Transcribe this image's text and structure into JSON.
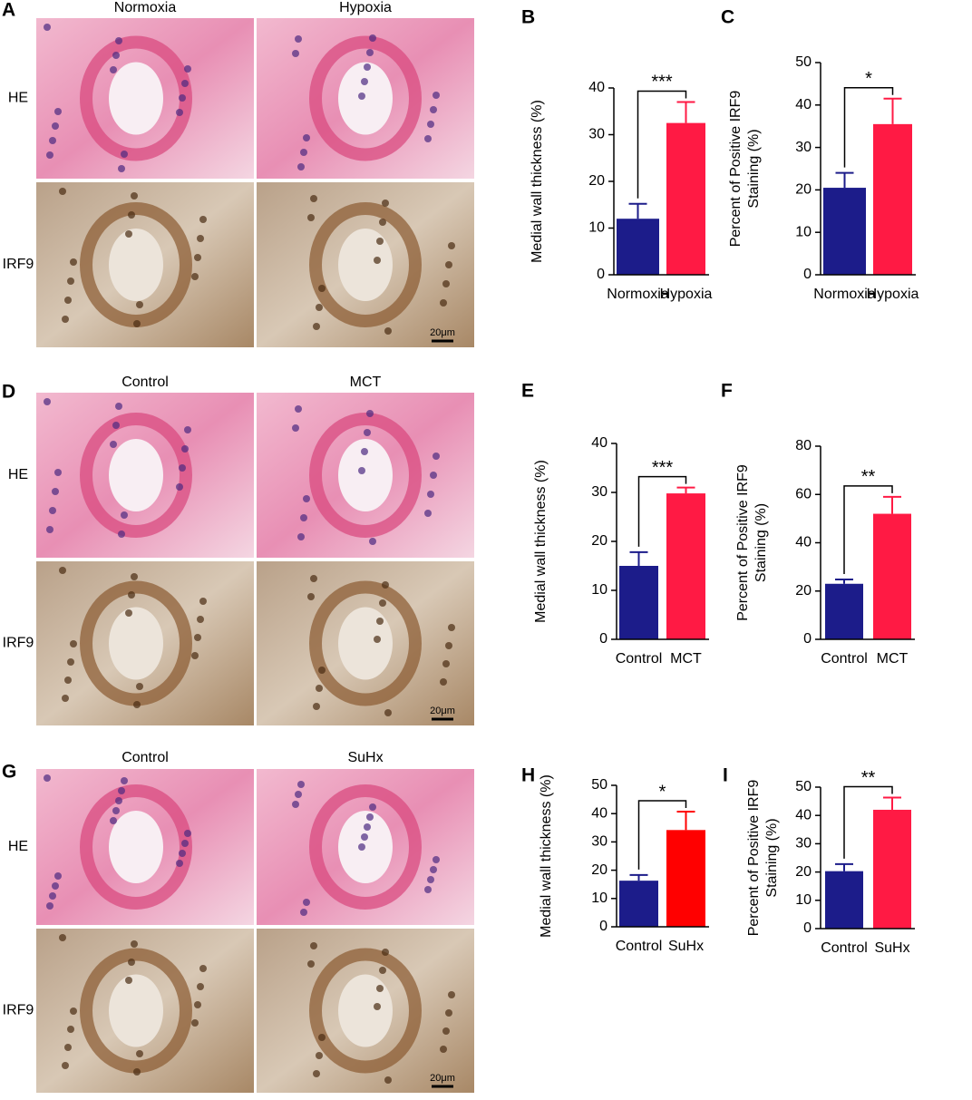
{
  "image_panels": [
    {
      "letter": "A",
      "columns": [
        "Normoxia",
        "Hypoxia"
      ],
      "rows": [
        "HE",
        "IRF9"
      ],
      "scale_bar": "20μm"
    },
    {
      "letter": "D",
      "columns": [
        "Control",
        "MCT"
      ],
      "rows": [
        "HE",
        "IRF9"
      ],
      "scale_bar": "20μm"
    },
    {
      "letter": "G",
      "columns": [
        "Control",
        "SuHx"
      ],
      "rows": [
        "HE",
        "IRF9"
      ],
      "scale_bar": "20μm"
    }
  ],
  "chart_data": [
    {
      "type": "bar",
      "letter": "B",
      "ylabel": [
        "Medial wall thickness (%)"
      ],
      "categories": [
        "Normoxia",
        "Hypoxia"
      ],
      "values": [
        12,
        32.5
      ],
      "errors": [
        3.2,
        4.5
      ],
      "colors": [
        "#1c1c8a",
        "#ff1a44"
      ],
      "ylim": [
        0,
        40
      ],
      "yticks": [
        0,
        10,
        20,
        30,
        40
      ],
      "significance": "***"
    },
    {
      "type": "bar",
      "letter": "C",
      "ylabel": [
        "Percent of Positive IRF9",
        "Staining (%)"
      ],
      "categories": [
        "Normoxia",
        "Hypoxia"
      ],
      "values": [
        20.5,
        35.5
      ],
      "errors": [
        3.5,
        6
      ],
      "colors": [
        "#1c1c8a",
        "#ff1a44"
      ],
      "ylim": [
        0,
        50
      ],
      "yticks": [
        0,
        10,
        20,
        30,
        40,
        50
      ],
      "significance": "*"
    },
    {
      "type": "bar",
      "letter": "E",
      "ylabel": [
        "Medial wall thickness (%)"
      ],
      "categories": [
        "Control",
        "MCT"
      ],
      "values": [
        15,
        29.8
      ],
      "errors": [
        2.8,
        1.2
      ],
      "colors": [
        "#1c1c8a",
        "#ff1a44"
      ],
      "ylim": [
        0,
        40
      ],
      "yticks": [
        0,
        10,
        20,
        30,
        40
      ],
      "significance": "***"
    },
    {
      "type": "bar",
      "letter": "F",
      "ylabel": [
        "Percent of Positive IRF9",
        "Staining (%)"
      ],
      "categories": [
        "Control",
        "MCT"
      ],
      "values": [
        23,
        52
      ],
      "errors": [
        1.8,
        7
      ],
      "colors": [
        "#1c1c8a",
        "#ff1a44"
      ],
      "ylim": [
        0,
        80
      ],
      "yticks": [
        0,
        20,
        40,
        60,
        80
      ],
      "significance": "**"
    },
    {
      "type": "bar",
      "letter": "H",
      "ylabel": [
        "Medial wall thickness (%)"
      ],
      "categories": [
        "Control",
        "SuHx"
      ],
      "values": [
        16.3,
        34.2
      ],
      "errors": [
        2,
        6.5
      ],
      "colors": [
        "#1c1c8a",
        "#ff0000"
      ],
      "ylim": [
        0,
        50
      ],
      "yticks": [
        0,
        10,
        20,
        30,
        40,
        50
      ],
      "significance": "*"
    },
    {
      "type": "bar",
      "letter": "I",
      "ylabel": [
        "Percent of Positive IRF9",
        "Staining (%)"
      ],
      "categories": [
        "Control",
        "SuHx"
      ],
      "values": [
        20.3,
        42
      ],
      "errors": [
        2.5,
        4.3
      ],
      "colors": [
        "#1c1c8a",
        "#ff1a44"
      ],
      "ylim": [
        0,
        50
      ],
      "yticks": [
        0,
        10,
        20,
        30,
        40,
        50
      ],
      "significance": "**"
    }
  ]
}
